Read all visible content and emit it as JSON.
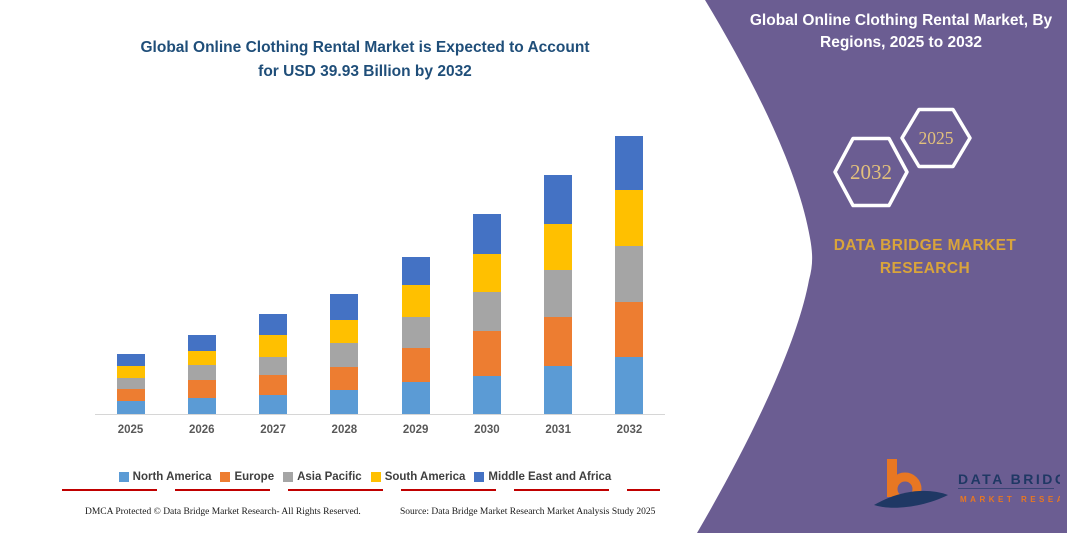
{
  "chart": {
    "title_line1": "Global Online Clothing Rental Market is Expected to Account",
    "title_line2": "for USD 39.93 Billion by 2032",
    "title_color": "#1F4E79"
  },
  "chart_data": {
    "type": "bar",
    "stacked": true,
    "title": "Global Online Clothing Rental Market is Expected to Account for USD 39.93 Billion by 2032",
    "units": "USD Billion",
    "categories": [
      "2025",
      "2026",
      "2027",
      "2028",
      "2029",
      "2030",
      "2031",
      "2032"
    ],
    "series": [
      {
        "name": "North America",
        "color": "#5B9BD5",
        "values": [
          1.87,
          2.26,
          2.73,
          3.45,
          4.64,
          5.51,
          6.86,
          8.15
        ]
      },
      {
        "name": "Europe",
        "color": "#ED7D31",
        "values": [
          1.73,
          2.63,
          2.88,
          3.35,
          4.79,
          6.47,
          7.05,
          8.01
        ]
      },
      {
        "name": "Asia Pacific",
        "color": "#A5A5A5",
        "values": [
          1.54,
          2.2,
          2.63,
          3.45,
          4.56,
          5.51,
          6.71,
          7.95
        ]
      },
      {
        "name": "South America",
        "color": "#FFC000",
        "values": [
          1.77,
          2.01,
          3.12,
          3.26,
          4.56,
          5.51,
          6.71,
          8.01
        ]
      },
      {
        "name": "Middle East and Africa",
        "color": "#4472C4",
        "values": [
          1.73,
          2.3,
          3.02,
          3.74,
          3.98,
          5.71,
          6.94,
          7.81
        ]
      }
    ],
    "totals": [
      8.64,
      11.4,
      14.38,
      17.25,
      22.53,
      28.71,
      34.27,
      39.93
    ],
    "xlabel": "",
    "ylabel": "",
    "ylim": [
      0,
      39.93
    ],
    "y_axis_shown": false,
    "grid": false,
    "legend_position": "bottom",
    "note": "segment values estimated from bar heights; 2032 total stated as USD 39.93 Billion"
  },
  "footer": {
    "left": "DMCA Protected © Data Bridge Market Research-  All Rights Reserved.",
    "right": "Source: Data Bridge Market Research  Market Analysis Study 2025"
  },
  "panel": {
    "bg_color": "#6B5D92",
    "title": "Global Online Clothing Rental Market, By Regions, 2025 to 2032",
    "hexagons": [
      {
        "label": "2032"
      },
      {
        "label": "2025"
      }
    ],
    "brand_line1": "DATA BRIDGE MARKET",
    "brand_line2": "RESEARCH",
    "gold_color": "#D9A43B",
    "hex_text_color": "#E2C07C",
    "logo": {
      "text_top": "DATA BRIDGE",
      "text_bottom": "MARKET RESEARCH",
      "orange": "#E87722",
      "navy": "#1F3864"
    }
  }
}
